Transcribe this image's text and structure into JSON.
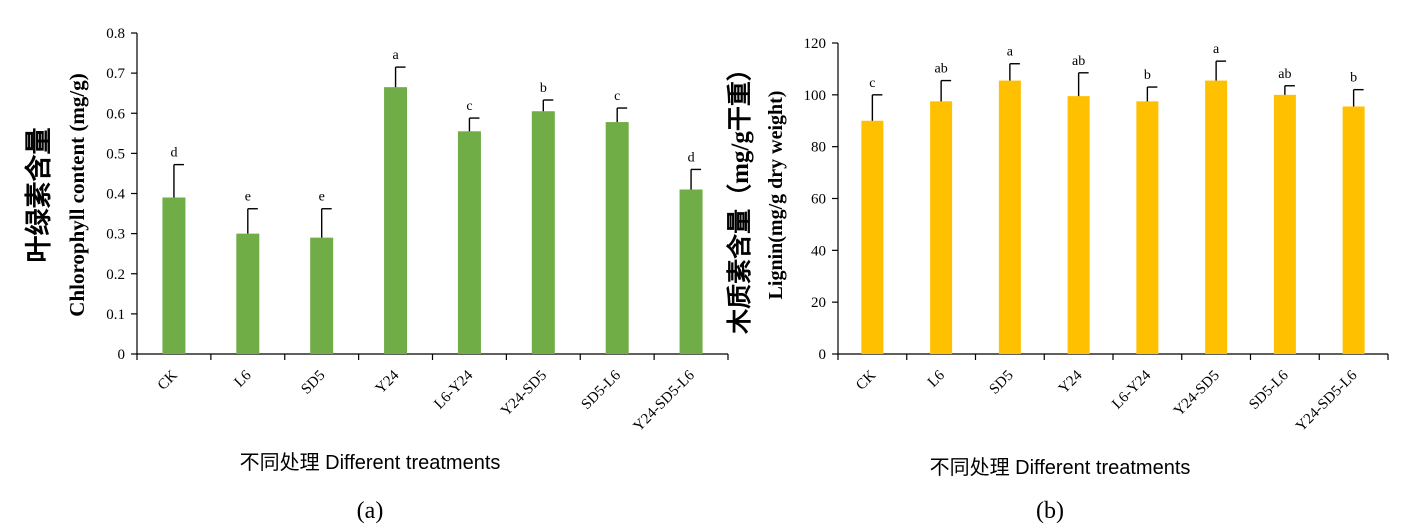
{
  "chart_data": [
    {
      "type": "bar",
      "panel_label": "(a)",
      "ylabel_cn": "叶绿素含量",
      "ylabel_en": "Chlorophyll content (mg/g)",
      "xlabel": "不同处理 Different treatments",
      "ylim": [
        0,
        0.8
      ],
      "ytick_labels": [
        "0",
        "0.1",
        "0.2",
        "0.3",
        "0.4",
        "0.5",
        "0.6",
        "0.7",
        "0.8"
      ],
      "categories": [
        "CK",
        "L6",
        "SD5",
        "Y24",
        "L6-Y24",
        "Y24-SD5",
        "SD5-L6",
        "Y24-SD5-L6"
      ],
      "values": [
        0.39,
        0.3,
        0.29,
        0.665,
        0.555,
        0.605,
        0.578,
        0.41
      ],
      "errors": [
        0.082,
        0.062,
        0.072,
        0.05,
        0.033,
        0.028,
        0.035,
        0.05
      ],
      "significance": [
        "d",
        "e",
        "e",
        "a",
        "c",
        "b",
        "c",
        "d"
      ],
      "bar_color": "#70AD47",
      "grid": false
    },
    {
      "type": "bar",
      "panel_label": "(b)",
      "ylabel_cn": "木质素含量（mg/g干重）",
      "ylabel_en": "Lignin(mg/g dry weight)",
      "xlabel": "不同处理 Different treatments",
      "ylim": [
        0,
        120
      ],
      "ytick_labels": [
        "0",
        "20",
        "40",
        "60",
        "80",
        "100",
        "120"
      ],
      "categories": [
        "CK",
        "L6",
        "SD5",
        "Y24",
        "L6-Y24",
        "Y24-SD5",
        "SD5-L6",
        "Y24-SD5-L6"
      ],
      "values": [
        90,
        97.5,
        105.5,
        99.5,
        97.5,
        105.5,
        100,
        95.5
      ],
      "errors": [
        10,
        8,
        6.5,
        9,
        5.5,
        7.5,
        3.5,
        6.5
      ],
      "significance": [
        "c",
        "ab",
        "a",
        "ab",
        "b",
        "a",
        "ab",
        "b"
      ],
      "bar_color": "#FFC000",
      "grid": false
    }
  ]
}
